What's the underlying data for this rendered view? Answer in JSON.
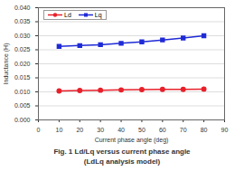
{
  "chart_data": {
    "type": "line",
    "title": "Fig. 1 Ld/Lq versus current phase angle",
    "subtitle": "(LdLq analysis model)",
    "x_label": "Current phase angle (deg)",
    "y_label": "Inductance (H)",
    "x": [
      10,
      20,
      30,
      40,
      50,
      60,
      70,
      80
    ],
    "series": [
      {
        "name": "Ld",
        "color": "#e8202a",
        "marker": "circle",
        "values": [
          0.0103,
          0.0105,
          0.0106,
          0.0107,
          0.0108,
          0.0109,
          0.0109,
          0.011
        ]
      },
      {
        "name": "Lq",
        "color": "#1f2bd6",
        "marker": "square",
        "values": [
          0.0262,
          0.0265,
          0.0268,
          0.0273,
          0.0278,
          0.0285,
          0.0292,
          0.03
        ]
      }
    ],
    "xlim": [
      0,
      90
    ],
    "xticks": [
      0,
      10,
      20,
      30,
      40,
      50,
      60,
      70,
      80,
      90
    ],
    "ylim": [
      0,
      0.04
    ],
    "yticks": [
      {
        "value": 0,
        "label": "0.000"
      },
      {
        "value": 0.005,
        "label": "0.005"
      },
      {
        "value": 0.01,
        "label": "0.010"
      },
      {
        "value": 0.015,
        "label": "0.015"
      },
      {
        "value": 0.02,
        "label": "0.020"
      },
      {
        "value": 0.025,
        "label": "0.025"
      },
      {
        "value": 0.03,
        "label": "0.030"
      },
      {
        "value": 0.035,
        "label": "0.035"
      },
      {
        "value": 0.04,
        "label": "0.040"
      }
    ],
    "grid": true,
    "legend": "upper left"
  }
}
